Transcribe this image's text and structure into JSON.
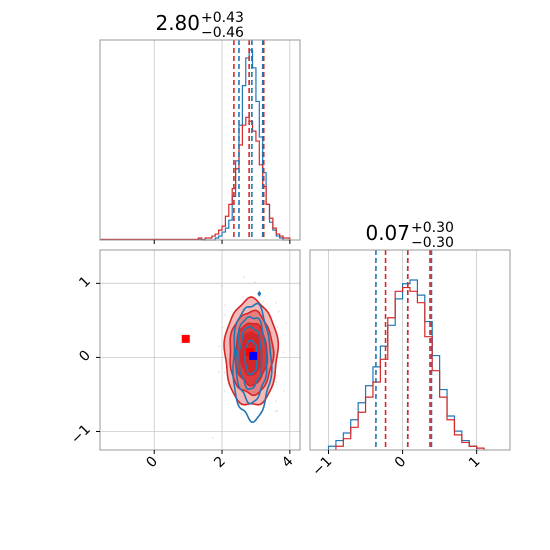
{
  "chart_data": [
    {
      "type": "histogram",
      "panel": "param1-marginal",
      "title": {
        "median": "2.80",
        "plus": "+0.43",
        "minus": "−0.46"
      },
      "xlim": [
        -1.6,
        4.3
      ],
      "grid": true,
      "series": [
        {
          "color": "#1f77b4",
          "bins": [
            1.5,
            1.6,
            1.7,
            1.8,
            1.9,
            2.0,
            2.1,
            2.2,
            2.3,
            2.4,
            2.5,
            2.6,
            2.7,
            2.8,
            2.9,
            3.0,
            3.1,
            3.2,
            3.3,
            3.4,
            3.5,
            3.6,
            3.7,
            3.8,
            3.9,
            4.0
          ],
          "counts": [
            0,
            0,
            0,
            1,
            2,
            4,
            6,
            10,
            22,
            40,
            58,
            78,
            92,
            96,
            87,
            70,
            52,
            34,
            18,
            9,
            5,
            2,
            1,
            0,
            0
          ]
        },
        {
          "color": "#d62728",
          "bins": [
            1.3,
            1.4,
            1.5,
            1.6,
            1.7,
            1.8,
            1.9,
            2.0,
            2.1,
            2.2,
            2.3,
            2.4,
            2.5,
            2.6,
            2.7,
            2.8,
            2.9,
            3.0,
            3.1,
            3.2,
            3.3,
            3.4,
            3.5,
            3.6,
            3.7,
            3.8,
            3.9,
            4.0
          ],
          "counts": [
            1,
            0,
            1,
            1,
            2,
            3,
            5,
            7,
            12,
            18,
            26,
            36,
            48,
            58,
            62,
            60,
            55,
            50,
            38,
            27,
            18,
            11,
            6,
            3,
            2,
            1,
            1
          ]
        }
      ],
      "quantile_lines": [
        {
          "color": "#1f77b4",
          "values": [
            2.5,
            2.88,
            3.2
          ]
        },
        {
          "color": "#d62728",
          "values": [
            2.35,
            2.8,
            3.23
          ]
        }
      ],
      "tick_values": [
        0,
        2,
        4
      ]
    },
    {
      "type": "contour",
      "panel": "2d-joint",
      "xlim": [
        -1.6,
        4.3
      ],
      "ylim": [
        -1.25,
        1.45
      ],
      "xticks": [
        "0",
        "2",
        "4"
      ],
      "yticks": [
        "−1",
        "0",
        "1"
      ],
      "xtick_values": [
        0,
        2,
        4
      ],
      "ytick_values": [
        -1,
        0,
        1
      ],
      "grid": true,
      "red_levels": [
        {
          "center": [
            2.86,
            0.06
          ],
          "spread": [
            0.78,
            0.72
          ],
          "fill": "#f4b9b9"
        },
        {
          "center": [
            2.86,
            0.06
          ],
          "spread": [
            0.64,
            0.56
          ],
          "fill": "#e67f80"
        },
        {
          "center": [
            2.86,
            0.05
          ],
          "spread": [
            0.47,
            0.42
          ],
          "fill": "#dd3a3b"
        },
        {
          "center": [
            2.86,
            0.05
          ],
          "spread": [
            0.32,
            0.29
          ],
          "fill": "#d62728"
        }
      ],
      "blue_levels": [
        {
          "center": [
            2.88,
            -0.06
          ],
          "spread": [
            0.56,
            0.78
          ]
        },
        {
          "center": [
            2.86,
            -0.02
          ],
          "spread": [
            0.45,
            0.58
          ]
        },
        {
          "center": [
            2.84,
            0.0
          ],
          "spread": [
            0.33,
            0.42
          ]
        },
        {
          "center": [
            2.86,
            0.0
          ],
          "spread": [
            0.18,
            0.23
          ]
        }
      ],
      "points": [
        {
          "x": 0.93,
          "y": 0.25,
          "color": "#ff0000",
          "marker": "square"
        },
        {
          "x": 2.82,
          "y": 0.07,
          "color": "#ff0000",
          "marker": "square"
        },
        {
          "x": 2.92,
          "y": 0.02,
          "color": "#0000ff",
          "marker": "square"
        },
        {
          "x": 3.1,
          "y": 0.86,
          "color": "#1f77b4",
          "marker": "diamond"
        }
      ]
    },
    {
      "type": "histogram",
      "panel": "param2-marginal",
      "title": {
        "median": "0.07",
        "plus": "+0.30",
        "minus": "−0.30"
      },
      "xlim": [
        -1.25,
        1.45
      ],
      "xticks": [
        "−1",
        "0",
        "1"
      ],
      "xtick_values": [
        -1,
        0,
        1
      ],
      "grid": true,
      "series": [
        {
          "color": "#1f77b4",
          "bins": [
            -1.0,
            -0.9,
            -0.8,
            -0.7,
            -0.6,
            -0.5,
            -0.4,
            -0.3,
            -0.2,
            -0.1,
            0.0,
            0.1,
            0.2,
            0.3,
            0.4,
            0.5,
            0.6,
            0.7,
            0.8,
            0.9,
            1.0
          ],
          "counts": [
            2,
            5,
            9,
            16,
            25,
            34,
            44,
            55,
            66,
            80,
            88,
            90,
            82,
            68,
            50,
            32,
            18,
            10,
            5,
            2
          ]
        },
        {
          "color": "#d62728",
          "bins": [
            -0.9,
            -0.8,
            -0.7,
            -0.6,
            -0.5,
            -0.4,
            -0.3,
            -0.2,
            -0.1,
            0.0,
            0.1,
            0.2,
            0.3,
            0.4,
            0.5,
            0.6,
            0.7,
            0.8,
            0.9,
            1.0,
            1.1
          ],
          "counts": [
            2,
            6,
            12,
            20,
            28,
            36,
            48,
            70,
            84,
            86,
            84,
            78,
            60,
            42,
            28,
            16,
            8,
            4,
            2,
            1
          ]
        }
      ],
      "quantile_lines": [
        {
          "color": "#1f77b4",
          "values": [
            -0.36,
            0.07,
            0.39
          ]
        },
        {
          "color": "#d62728",
          "values": [
            -0.23,
            0.07,
            0.37
          ]
        }
      ]
    }
  ]
}
